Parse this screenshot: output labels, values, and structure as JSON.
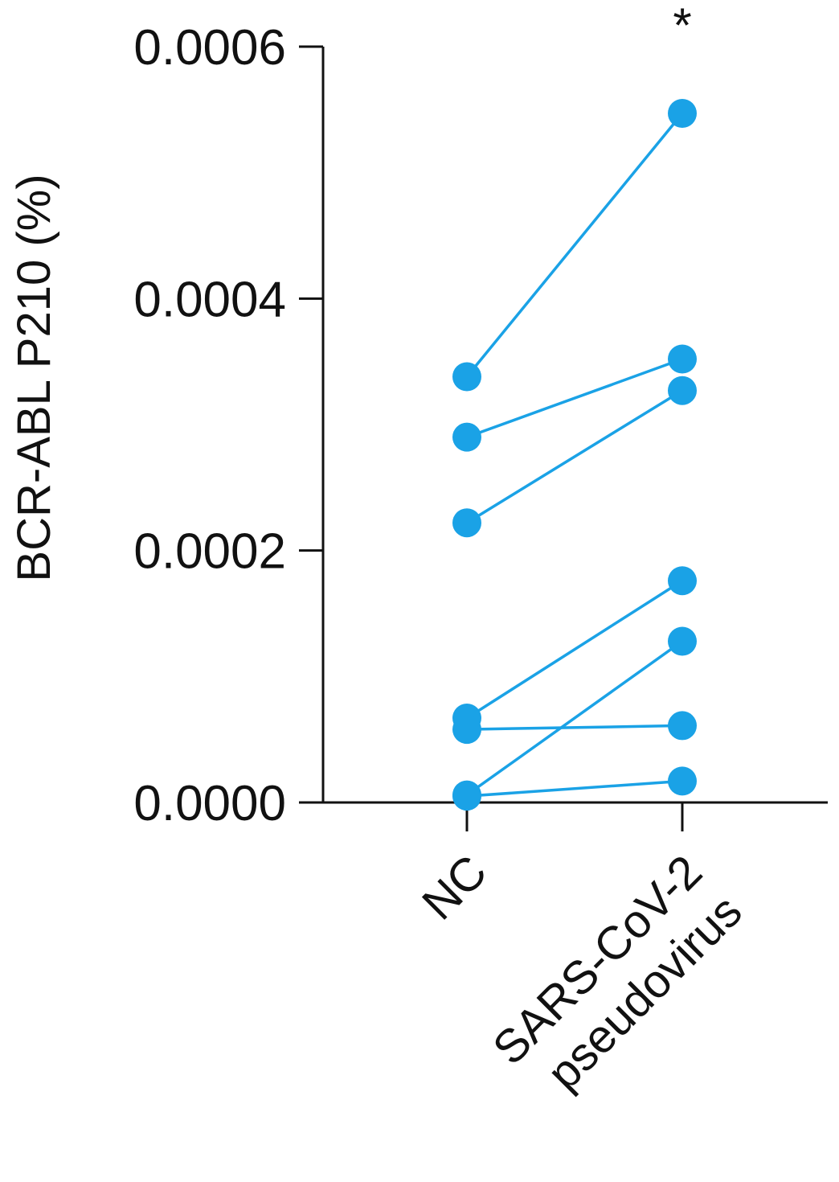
{
  "chart_data": {
    "type": "line",
    "title": "",
    "xlabel": "",
    "ylabel": "BCR-ABL P210 (%)",
    "categories": [
      "NC",
      "SARS-CoV-2\npseudovirus"
    ],
    "ylim": [
      0,
      0.0006
    ],
    "yticks": [
      {
        "value": 0,
        "label": "0.0000"
      },
      {
        "value": 0.0002,
        "label": "0.0002"
      },
      {
        "value": 0.0004,
        "label": "0.0004"
      },
      {
        "value": 0.0006,
        "label": "0.0006"
      }
    ],
    "pairs": [
      {
        "values": [
          0.000338,
          0.000547
        ]
      },
      {
        "values": [
          0.00029,
          0.000352
        ]
      },
      {
        "values": [
          0.000222,
          0.000327
        ]
      },
      {
        "values": [
          6.7e-05,
          0.000176
        ]
      },
      {
        "values": [
          5.8e-05,
          6.1e-05
        ]
      },
      {
        "values": [
          6e-06,
          0.000128
        ]
      },
      {
        "values": [
          5e-06,
          1.7e-05
        ]
      }
    ],
    "series_color": "#1aa2e6",
    "axis_color": "#111111",
    "annotations": [
      {
        "category_index": 1,
        "text": "*"
      }
    ],
    "grid": false,
    "legend": "none"
  }
}
